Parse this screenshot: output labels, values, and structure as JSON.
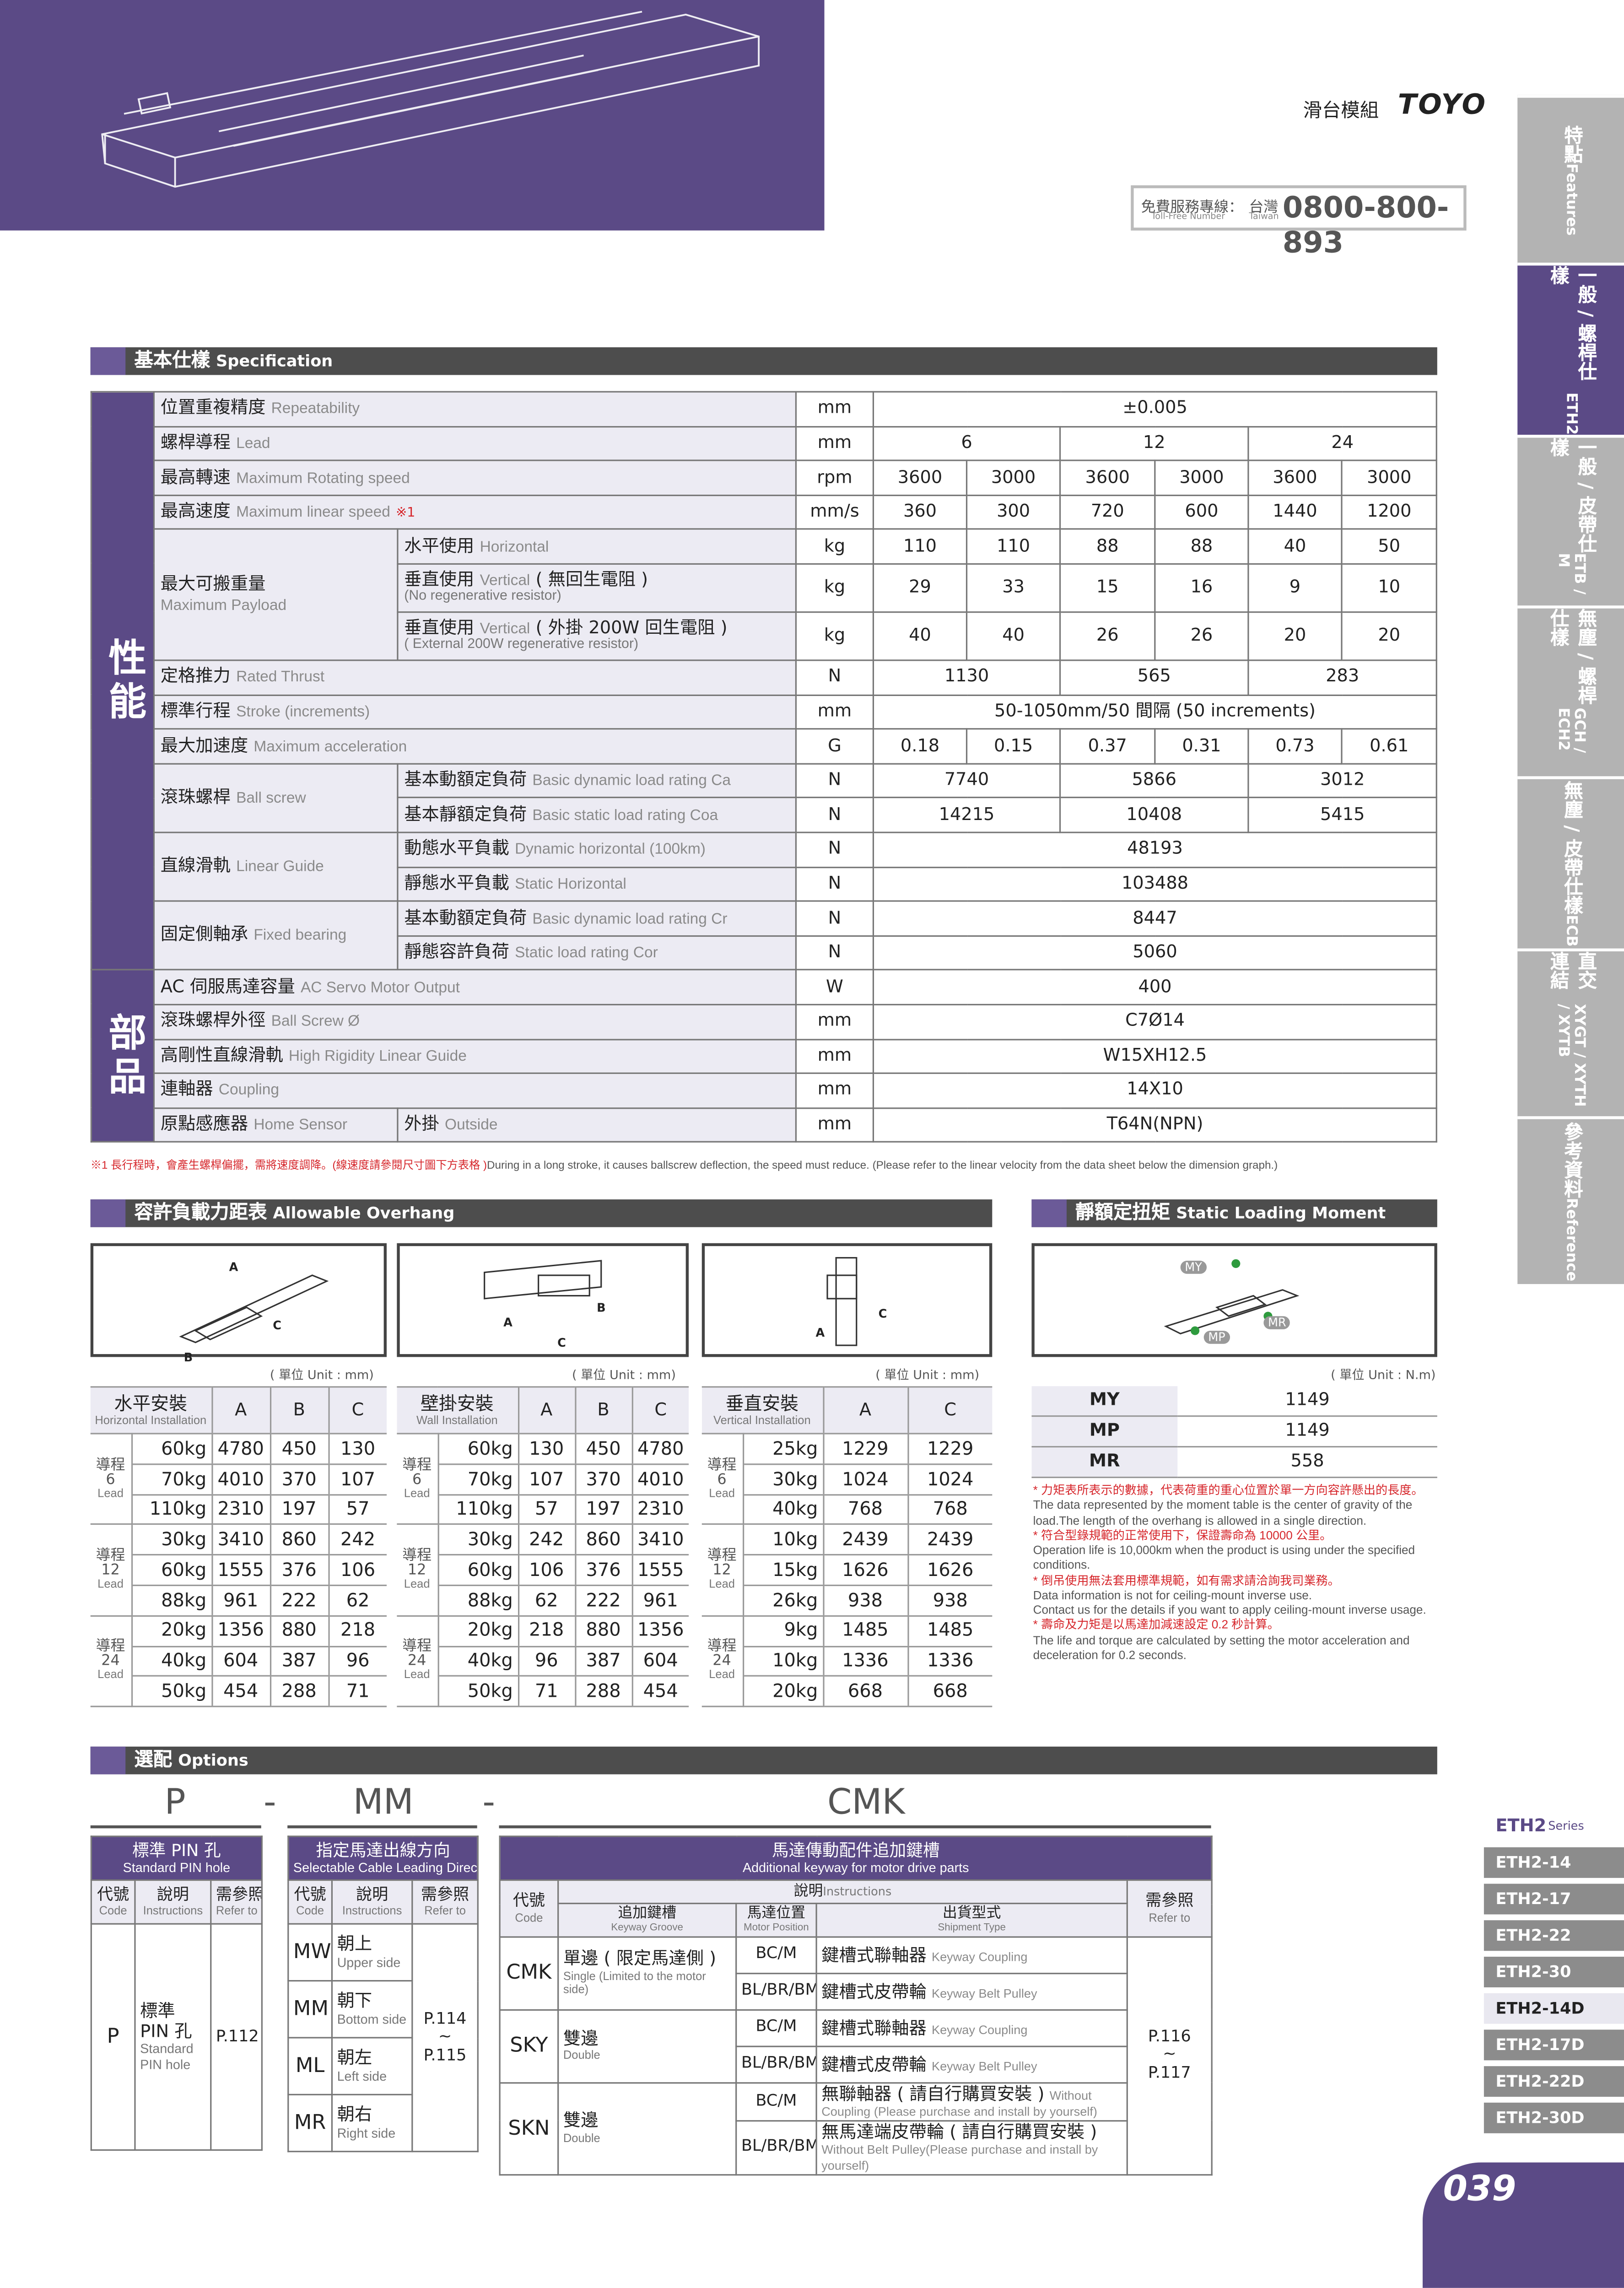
{
  "header": {
    "product": "滑台模組",
    "brand": "TOYO",
    "hotline_label": "免費服務專線：",
    "hotline_en": "Toll-Free Number",
    "region": "台灣",
    "region_en": "Taiwan",
    "phone": "0800-800-893"
  },
  "side_tabs": [
    {
      "zh": "特點",
      "en": "Features"
    },
    {
      "zh": "一般 / 螺桿仕樣",
      "en": "ETH2"
    },
    {
      "zh": "一般 / 皮帶仕樣",
      "en": "ETB / M"
    },
    {
      "zh": "無塵 / 螺桿仕樣",
      "en": "GCH / ECH2"
    },
    {
      "zh": "無塵 / 皮帶仕樣",
      "en": "ECB"
    },
    {
      "zh": "直交連結",
      "en": "XYGT / XYTH / XYTB"
    },
    {
      "zh": "參考資料",
      "en": "Reference"
    }
  ],
  "spec": {
    "title_zh": "基本仕樣",
    "title_en": "Specification",
    "groups": [
      {
        "label": "性能",
        "items": [
          {
            "zh": "位置重複精度",
            "en": "Repeatability",
            "unit": "mm",
            "values": [
              "±0.005"
            ]
          },
          {
            "zh": "螺桿導程",
            "en": "Lead",
            "unit": "mm",
            "values": [
              6,
              12,
              24
            ]
          },
          {
            "zh": "最高轉速",
            "en": "Maximum Rotating speed",
            "unit": "rpm",
            "values": [
              3600,
              3000,
              3600,
              3000,
              3600,
              3000
            ]
          },
          {
            "zh": "最高速度",
            "en": "Maximum linear speed",
            "mark": "※1",
            "unit": "mm/s",
            "values": [
              360,
              300,
              720,
              600,
              1440,
              1200
            ]
          },
          {
            "zh": "最大可搬重量",
            "en": "Maximum Payload",
            "subs": [
              {
                "zh": "水平使用",
                "en": "Horizontal",
                "unit": "kg",
                "values": [
                  110,
                  110,
                  88,
                  88,
                  40,
                  50
                ]
              },
              {
                "zh": "垂直使用",
                "en": "Vertical",
                "zh2": "( 無回生電阻 )",
                "en2": "(No regenerative resistor)",
                "unit": "kg",
                "values": [
                  29,
                  33,
                  15,
                  16,
                  9,
                  10
                ]
              },
              {
                "zh": "垂直使用",
                "en": "Vertical",
                "zh2": "( 外掛 200W 回生電阻 )",
                "en2": "( External 200W regenerative resistor)",
                "unit": "kg",
                "values": [
                  40,
                  40,
                  26,
                  26,
                  20,
                  20
                ]
              }
            ]
          },
          {
            "zh": "定格推力",
            "en": "Rated Thrust",
            "unit": "N",
            "values": [
              1130,
              565,
              283
            ]
          },
          {
            "zh": "標準行程",
            "en": "Stroke (increments)",
            "unit": "mm",
            "values": [
              "50-1050mm/50 間隔 (50 increments)"
            ]
          },
          {
            "zh": "最大加速度",
            "en": "Maximum acceleration",
            "unit": "G",
            "values": [
              0.18,
              0.15,
              0.37,
              0.31,
              0.73,
              0.61
            ]
          },
          {
            "zh": "滾珠螺桿",
            "en": "Ball screw",
            "subs": [
              {
                "zh": "基本動額定負荷",
                "en": "Basic dynamic load rating Ca",
                "unit": "N",
                "values": [
                  7740,
                  5866,
                  3012
                ]
              },
              {
                "zh": "基本靜額定負荷",
                "en": "Basic static load rating Coa",
                "unit": "N",
                "values": [
                  14215,
                  10408,
                  5415
                ]
              }
            ]
          },
          {
            "zh": "直線滑軌",
            "en": "Linear Guide",
            "subs": [
              {
                "zh": "動態水平負載",
                "en": "Dynamic horizontal (100km)",
                "unit": "N",
                "values": [
                  48193
                ]
              },
              {
                "zh": "靜態水平負載",
                "en": "Static Horizontal",
                "unit": "N",
                "values": [
                  103488
                ]
              }
            ]
          },
          {
            "zh": "固定側軸承",
            "en": "Fixed bearing",
            "subs": [
              {
                "zh": "基本動額定負荷",
                "en": "Basic dynamic load rating Cr",
                "unit": "N",
                "values": [
                  8447
                ]
              },
              {
                "zh": "靜態容許負荷",
                "en": "Static load rating Cor",
                "unit": "N",
                "values": [
                  5060
                ]
              }
            ]
          }
        ]
      },
      {
        "label": "部品",
        "items": [
          {
            "zh": "AC 伺服馬達容量",
            "en": "AC Servo Motor Output",
            "unit": "W",
            "values": [
              400
            ]
          },
          {
            "zh": "滾珠螺桿外徑",
            "en": "Ball Screw Ø",
            "unit": "mm",
            "values": [
              "C7Ø14"
            ]
          },
          {
            "zh": "高剛性直線滑軌",
            "en": "High Rigidity Linear Guide",
            "unit": "mm",
            "values": [
              "W15XH12.5"
            ]
          },
          {
            "zh": "連軸器",
            "en": "Coupling",
            "unit": "mm",
            "values": [
              "14X10"
            ]
          },
          {
            "zh": "原點感應器",
            "en": "Home Sensor",
            "subs": [
              {
                "zh": "外掛",
                "en": "Outside",
                "unit": "mm",
                "values": [
                  "T64N(NPN)"
                ]
              }
            ]
          }
        ]
      }
    ],
    "note_zh": "※1 長行程時，會產生螺桿偏擺，需將速度調降。(線速度請參閱尺寸圖下方表格 )",
    "note_en": "During in a long stroke, it causes ballscrew deflection, the speed must reduce. (Please refer to the linear velocity from the data sheet below the dimension graph.)"
  },
  "overhang": {
    "title_zh": "容許負載力距表",
    "title_en": "Allowable Overhang",
    "lead_zh": "導程",
    "lead_en": "Lead",
    "tables": [
      {
        "unit": "( 單位 Unit : mm)",
        "title_zh": "水平安裝",
        "title_en": "Horizontal Installation",
        "columns": [
          "A",
          "B",
          "C"
        ],
        "groups": [
          {
            "lead": "6",
            "rows": [
              [
                "60kg",
                4780,
                450,
                130
              ],
              [
                "70kg",
                4010,
                370,
                107
              ],
              [
                "110kg",
                2310,
                197,
                57
              ]
            ]
          },
          {
            "lead": "12",
            "rows": [
              [
                "30kg",
                3410,
                860,
                242
              ],
              [
                "60kg",
                1555,
                376,
                106
              ],
              [
                "88kg",
                961,
                222,
                62
              ]
            ]
          },
          {
            "lead": "24",
            "rows": [
              [
                "20kg",
                1356,
                880,
                218
              ],
              [
                "40kg",
                604,
                387,
                96
              ],
              [
                "50kg",
                454,
                288,
                71
              ]
            ]
          }
        ]
      },
      {
        "unit": "( 單位 Unit : mm)",
        "title_zh": "壁掛安裝",
        "title_en": "Wall Installation",
        "columns": [
          "A",
          "B",
          "C"
        ],
        "groups": [
          {
            "lead": "6",
            "rows": [
              [
                "60kg",
                130,
                450,
                4780
              ],
              [
                "70kg",
                107,
                370,
                4010
              ],
              [
                "110kg",
                57,
                197,
                2310
              ]
            ]
          },
          {
            "lead": "12",
            "rows": [
              [
                "30kg",
                242,
                860,
                3410
              ],
              [
                "60kg",
                106,
                376,
                1555
              ],
              [
                "88kg",
                62,
                222,
                961
              ]
            ]
          },
          {
            "lead": "24",
            "rows": [
              [
                "20kg",
                218,
                880,
                1356
              ],
              [
                "40kg",
                96,
                387,
                604
              ],
              [
                "50kg",
                71,
                288,
                454
              ]
            ]
          }
        ]
      },
      {
        "unit": "( 單位 Unit : mm)",
        "title_zh": "垂直安裝",
        "title_en": "Vertical Installation",
        "columns": [
          "A",
          "C"
        ],
        "groups": [
          {
            "lead": "6",
            "rows": [
              [
                "25kg",
                1229,
                1229
              ],
              [
                "30kg",
                1024,
                1024
              ],
              [
                "40kg",
                768,
                768
              ]
            ]
          },
          {
            "lead": "12",
            "rows": [
              [
                "10kg",
                2439,
                2439
              ],
              [
                "15kg",
                1626,
                1626
              ],
              [
                "26kg",
                938,
                938
              ]
            ]
          },
          {
            "lead": "24",
            "rows": [
              [
                "9kg",
                1485,
                1485
              ],
              [
                "10kg",
                1336,
                1336
              ],
              [
                "20kg",
                668,
                668
              ]
            ]
          }
        ]
      }
    ]
  },
  "moment": {
    "title_zh": "靜額定扭矩",
    "title_en": "Static Loading Moment",
    "unit": "( 單位 Unit : N.m)",
    "rows": [
      [
        "MY",
        1149
      ],
      [
        "MP",
        1149
      ],
      [
        "MR",
        558
      ]
    ],
    "notes": [
      {
        "text": "* 力矩表所表示的數據，代表荷重的重心位置於單一方向容許懸出的長度。",
        "red": true
      },
      {
        "text": "The data represented by the moment table is the center of gravity of the load.The length of the overhang is allowed in a single direction.",
        "red": false
      },
      {
        "text": "* 符合型錄規範的正常使用下，保證壽命為 10000 公里。",
        "red": true
      },
      {
        "text": "Operation life is 10,000km when the product is using under the specified conditions.",
        "red": false
      },
      {
        "text": "* 倒吊使用無法套用標準規範，如有需求請洽詢我司業務。",
        "red": true
      },
      {
        "text": "Data information is not for ceiling-mount inverse use.",
        "red": false
      },
      {
        "text": "Contact us for the details if you want to apply ceiling-mount inverse usage.",
        "red": false
      },
      {
        "text": "* 壽命及力矩是以馬達加減速設定 0.2 秒計算。",
        "red": true
      },
      {
        "text": "The life and torque are calculated by setting the motor acceleration and deceleration for 0.2 seconds.",
        "red": false
      }
    ]
  },
  "options": {
    "title_zh": "選配",
    "title_en": "Options",
    "code_line": [
      "P",
      "-",
      "MM",
      "-",
      "CMK"
    ],
    "head": {
      "code_zh": "代號",
      "code_en": "Code",
      "desc_zh": "說明",
      "desc_en": "Instructions",
      "ref_zh": "需參照",
      "ref_en": "Refer to"
    },
    "pin": {
      "title_zh": "標準 PIN 孔",
      "title_en": "Standard PIN hole",
      "rows": [
        {
          "code": "P",
          "zh": "標準 PIN 孔",
          "en": "Standard PIN hole"
        }
      ],
      "ref": [
        "P.112"
      ]
    },
    "cable": {
      "title_zh": "指定馬達出線方向",
      "title_en": "Selectable Cable Leading Direction",
      "rows": [
        {
          "code": "MW",
          "zh": "朝上",
          "en": "Upper side"
        },
        {
          "code": "MM",
          "zh": "朝下",
          "en": "Bottom side"
        },
        {
          "code": "ML",
          "zh": "朝左",
          "en": "Left side"
        },
        {
          "code": "MR",
          "zh": "朝右",
          "en": "Right side"
        }
      ],
      "ref": [
        "P.114",
        "~",
        "P.115"
      ]
    },
    "keyway": {
      "title_zh": "馬達傳動配件追加鍵槽",
      "title_en": "Additional keyway for motor drive parts",
      "groove_zh": "追加鍵槽",
      "groove_en": "Keyway Groove",
      "pos_zh": "馬達位置",
      "pos_en": "Motor Position",
      "ship_zh": "出貨型式",
      "ship_en": "Shipment Type",
      "rows": [
        {
          "code": "CMK",
          "zh": "單邊 ( 限定馬達側 )",
          "en": "Single (Limited to the motor side)",
          "items": [
            [
              "BC/M",
              "鍵槽式聯軸器",
              "Keyway Coupling"
            ],
            [
              "BL/BR/BM",
              "鍵槽式皮帶輪",
              "Keyway Belt Pulley"
            ]
          ]
        },
        {
          "code": "SKY",
          "zh": "雙邊",
          "en": "Double",
          "items": [
            [
              "BC/M",
              "鍵槽式聯軸器",
              "Keyway Coupling"
            ],
            [
              "BL/BR/BM",
              "鍵槽式皮帶輪",
              "Keyway Belt Pulley"
            ]
          ]
        },
        {
          "code": "SKN",
          "zh": "雙邊",
          "en": "Double",
          "items": [
            [
              "BC/M",
              "無聯軸器 ( 請自行購買安裝 )",
              "Without Coupling (Please purchase and install by yourself)"
            ],
            [
              "BL/BR/BM",
              "無馬達端皮帶輪 ( 請自行購買安裝 )",
              "Without Belt Pulley(Please purchase and install by yourself)"
            ]
          ]
        }
      ],
      "ref": [
        "P.116",
        "~",
        "P.117"
      ]
    }
  },
  "series_nav": {
    "title": "ETH2",
    "sub": "Series",
    "items": [
      "ETH2-14",
      "ETH2-17",
      "ETH2-22",
      "ETH2-30",
      "ETH2-14D",
      "ETH2-17D",
      "ETH2-22D",
      "ETH2-30D"
    ],
    "active": "ETH2-14D"
  },
  "page_number": "039"
}
